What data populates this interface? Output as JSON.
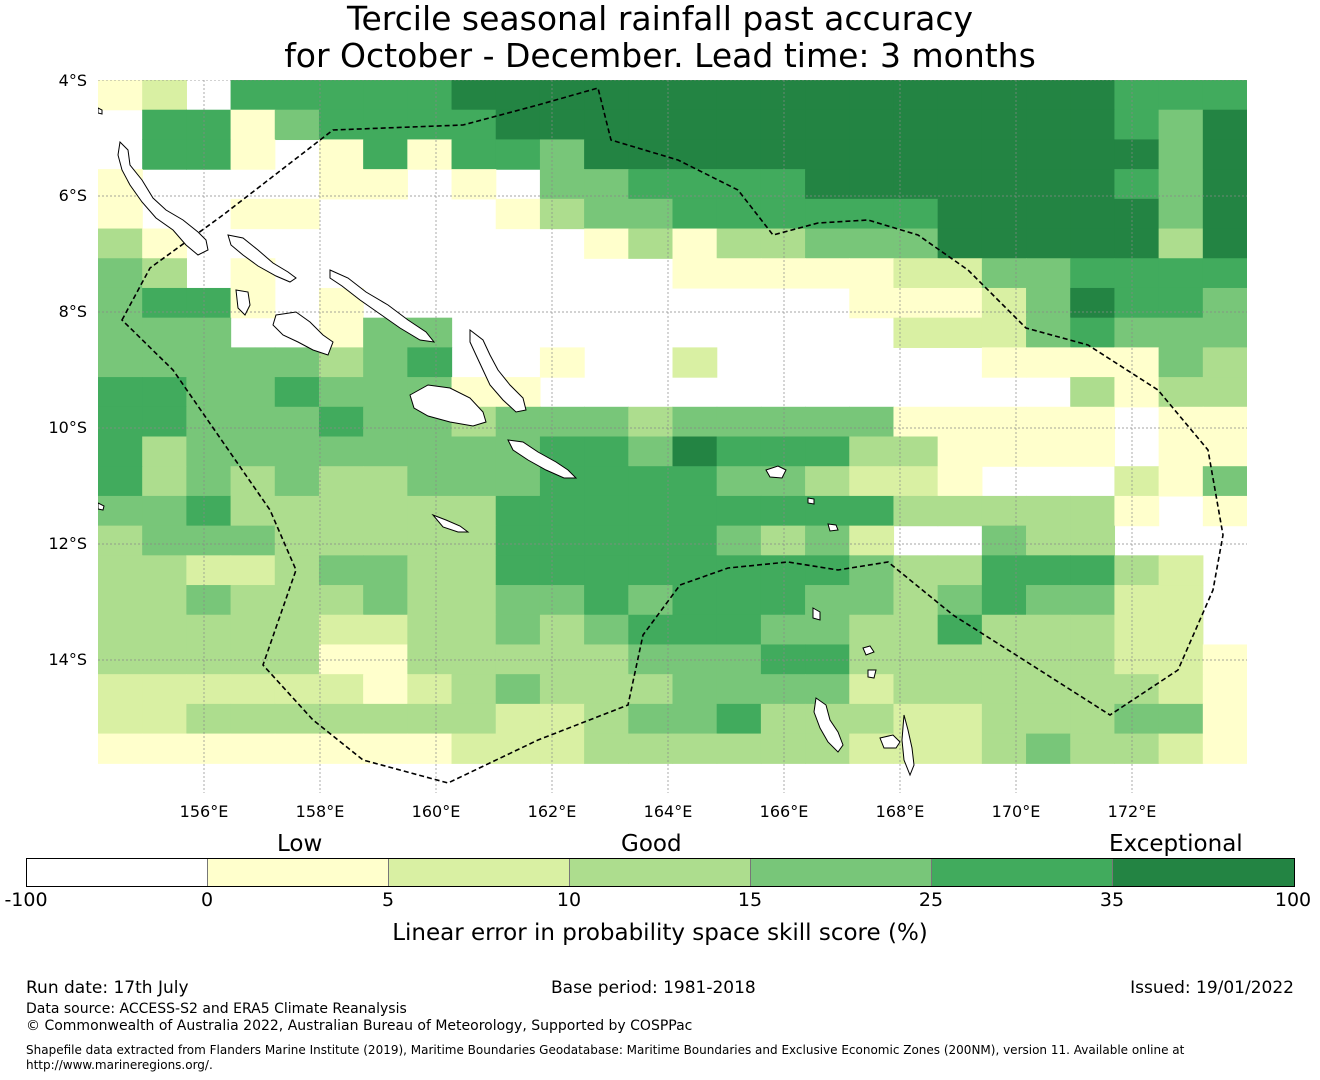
{
  "title": {
    "line1": "Tercile seasonal rainfall past accuracy",
    "line2": "for October - December. Lead time: 3 months"
  },
  "map": {
    "lat_labels": [
      "4°S",
      "6°S",
      "8°S",
      "10°S",
      "12°S",
      "14°S"
    ],
    "lon_labels": [
      "156°E",
      "158°E",
      "160°E",
      "162°E",
      "164°E",
      "166°E",
      "168°E",
      "170°E",
      "172°E"
    ],
    "lon_range_deg_east": [
      154.2,
      174.0
    ],
    "lat_range_deg": [
      -4.0,
      -16.3
    ],
    "grid_step_deg": 0.84,
    "skill_grid_legend_class": [
      "12055555666666666666666555",
      "05514555566666666666666546",
      "05510151554666666666666646",
      "10000110104455556666666546",
      "10011000013445555556666646",
      "31000000000131334446666636",
      "43010000000001111122445555",
      "45510100000000000111246554",
      "44400144000000000022245444",
      "44444345001002000000111143",
      "55445444110000000000003133",
      "55444544344434444411111011",
      "53444444445546555331111011",
      "53434334445555443221000214",
      "44533333355555555533333101",
      "34443333355555434200433000",
      "33223443355555555433555320",
      "33433343344545554434544220",
      "33333223343455544335333220",
      "33333113333344455333333221",
      "22222212343334444233333321",
      "22333333322344533322333441",
      "11111111222333333222343321",
      "00000000000000000000000000"
    ]
  },
  "legend": {
    "category_labels": [
      "Low",
      "Good",
      "Exceptional"
    ],
    "tick_labels": [
      "-100",
      "0",
      "5",
      "10",
      "15",
      "25",
      "35",
      "100"
    ],
    "colors": [
      "#ffffff",
      "#ffffcc",
      "#d9f0a3",
      "#addd8e",
      "#78c679",
      "#41ab5d",
      "#238443"
    ],
    "title": "Linear error in probability space skill score (%)"
  },
  "footer": {
    "run_date": "Run date: 17th July",
    "base_period": "Base period: 1981-2018",
    "issued": "Issued: 19/01/2022",
    "data_source": "Data source: ACCESS-S2 and ERA5 Climate Reanalysis",
    "copyright": "© Commonwealth of Australia 2022, Australian Bureau of Meteorology, Supported by COSPPac",
    "shapefile_line1": "Shapefile data extracted from Flanders Marine Institute (2019), Maritime Boundaries Geodatabase: Maritime Boundaries and Exclusive Economic Zones (200NM), version 11. Available online at",
    "shapefile_line2": "http://www.marineregions.org/."
  }
}
